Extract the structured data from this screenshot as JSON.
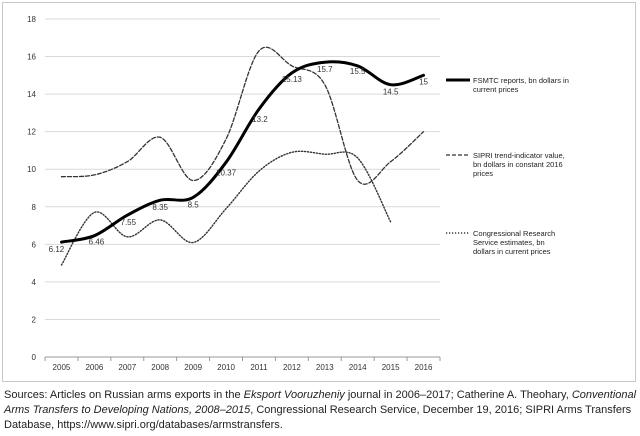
{
  "chart_data": {
    "type": "line",
    "x": [
      2005,
      2006,
      2007,
      2008,
      2009,
      2010,
      2011,
      2012,
      2013,
      2014,
      2015,
      2016
    ],
    "ylim": [
      0,
      18
    ],
    "yticks": [
      0,
      2,
      4,
      6,
      8,
      10,
      12,
      14,
      16,
      18
    ],
    "grid": true,
    "legend_position": "right",
    "series": [
      {
        "name": "FSMTC reports, bn dollars in current prices",
        "style": "solid-thick",
        "color": "#000000",
        "values": [
          6.12,
          6.46,
          7.55,
          8.35,
          8.5,
          10.37,
          13.2,
          15.13,
          15.7,
          15.5,
          14.5,
          15
        ],
        "labels": [
          "6.12",
          "6.46",
          "7.55",
          "8.35",
          "8.5",
          "10.37",
          "13.2",
          "15.13",
          "15.7",
          "15.5",
          "14.5",
          "15"
        ]
      },
      {
        "name": "SIPRI trend-indicator value,  bn dollars in constant 2016 prices",
        "style": "dashed",
        "color": "#333333",
        "values": [
          9.6,
          9.7,
          10.4,
          11.7,
          9.4,
          11.6,
          16.3,
          15.5,
          14.5,
          9.4,
          10.4,
          12.0
        ]
      },
      {
        "name": "Congressional Research Service estimates, bn dollars in current prices",
        "style": "dotted",
        "color": "#333333",
        "values": [
          4.9,
          7.7,
          6.4,
          7.3,
          6.1,
          7.9,
          9.9,
          10.9,
          10.8,
          10.6,
          7.2,
          null
        ]
      }
    ]
  },
  "source": {
    "prefix": "Sources: Articles on Russian arms exports in the ",
    "journal": "Eksport Vooruzheniy",
    "mid": " journal in 2006–2017; Catherine A. Theohary, ",
    "book": "Conventional Arms Transfers to Developing Nations, 2008–2015",
    "tail": ", Congressional Research Service, December 19, 2016; SIPRI Arms Transfers Database, https://www.sipri.org/databases/armstransfers."
  }
}
